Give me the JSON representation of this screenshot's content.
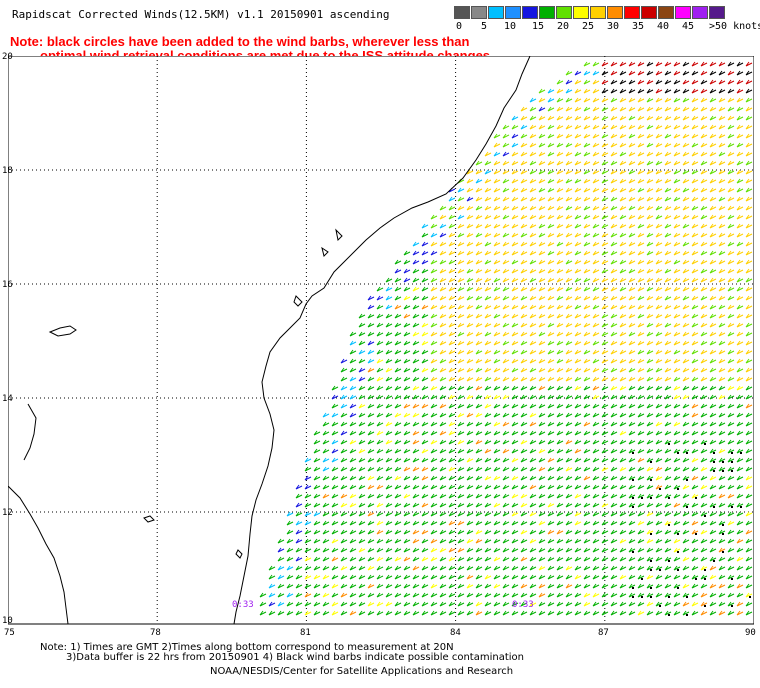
{
  "title": "Rapidscat Corrected Winds(12.5KM) v1.1 20150901 ascending",
  "note_line1": "Note: black circles have been added to the wind barbs, wherever less than",
  "note_line2": "optimal wind retrieval conditions are met due to the ISS attitude changes.",
  "colorbar": {
    "colors": [
      "#555555",
      "#888888",
      "#00bfff",
      "#1e90ff",
      "#1515e0",
      "#00b000",
      "#60e000",
      "#ffff00",
      "#ffd000",
      "#ff8c00",
      "#ff0000",
      "#cc0000",
      "#8b4513",
      "#ff00ff",
      "#a020f0",
      "#551a8b"
    ],
    "labels": [
      "0",
      "5",
      "10",
      "15",
      "20",
      "25",
      "30",
      "35",
      "40",
      "45",
      ">50 knots"
    ]
  },
  "lat_labels": [
    "20",
    "18",
    "16",
    "14",
    "12",
    "10"
  ],
  "lon_labels": [
    "75",
    "78",
    "81",
    "84",
    "87",
    "90"
  ],
  "time_labels": [
    "0:33",
    "0:33"
  ],
  "footer_line1": "Note: 1) Times are GMT 2)Times along bottom correspond to measurement at 20N",
  "footer_line2": "3)Data buffer is 22 hrs from 20150901 4) Black wind barbs indicate possible contamination",
  "footer_line3": "NOAA/NESDIS/Center for Satellite Applications and Research"
}
